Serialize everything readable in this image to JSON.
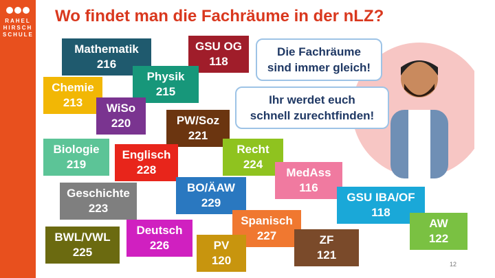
{
  "header": {
    "title": "Wo findet man die Fachräume in der nLZ?"
  },
  "logo": {
    "lines": [
      "RAHEL",
      "HIRSCH",
      "SCHULE"
    ]
  },
  "rooms": [
    {
      "subject": "Mathematik",
      "room": "216",
      "color": "#1f5a6e"
    },
    {
      "subject": "GSU OG",
      "room": "118",
      "color": "#a01d2a"
    },
    {
      "subject": "Physik",
      "room": "215",
      "color": "#17977a"
    },
    {
      "subject": "Chemie",
      "room": "213",
      "color": "#f2b705"
    },
    {
      "subject": "WiSo",
      "room": "220",
      "color": "#7a3490"
    },
    {
      "subject": "PW/Soz",
      "room": "221",
      "color": "#6b3510"
    },
    {
      "subject": "Biologie",
      "room": "219",
      "color": "#5cc497"
    },
    {
      "subject": "Englisch",
      "room": "228",
      "color": "#e8251b"
    },
    {
      "subject": "Recht",
      "room": "224",
      "color": "#8fc31f"
    },
    {
      "subject": "MedAss",
      "room": "116",
      "color": "#f07aa0"
    },
    {
      "subject": "Geschichte",
      "room": "223",
      "color": "#7f7f7f"
    },
    {
      "subject": "BO/ÄAW",
      "room": "229",
      "color": "#2a78c0"
    },
    {
      "subject": "GSU IBA/OF",
      "room": "118",
      "color": "#1aa8d8"
    },
    {
      "subject": "Spanisch",
      "room": "227",
      "color": "#f07830"
    },
    {
      "subject": "BWL/VWL",
      "room": "225",
      "color": "#6b6a10"
    },
    {
      "subject": "Deutsch",
      "room": "226",
      "color": "#d020c0"
    },
    {
      "subject": "PV",
      "room": "120",
      "color": "#c8950e"
    },
    {
      "subject": "ZF",
      "room": "121",
      "color": "#7a4a2a"
    },
    {
      "subject": "AW",
      "room": "122",
      "color": "#7ac142"
    }
  ],
  "bubbles": [
    {
      "lines": [
        "Die Fachräume",
        "sind immer gleich!"
      ]
    },
    {
      "lines": [
        "Ihr werdet euch",
        "schnell zurechtfinden!"
      ]
    }
  ],
  "footer": {
    "page_number": "12"
  }
}
